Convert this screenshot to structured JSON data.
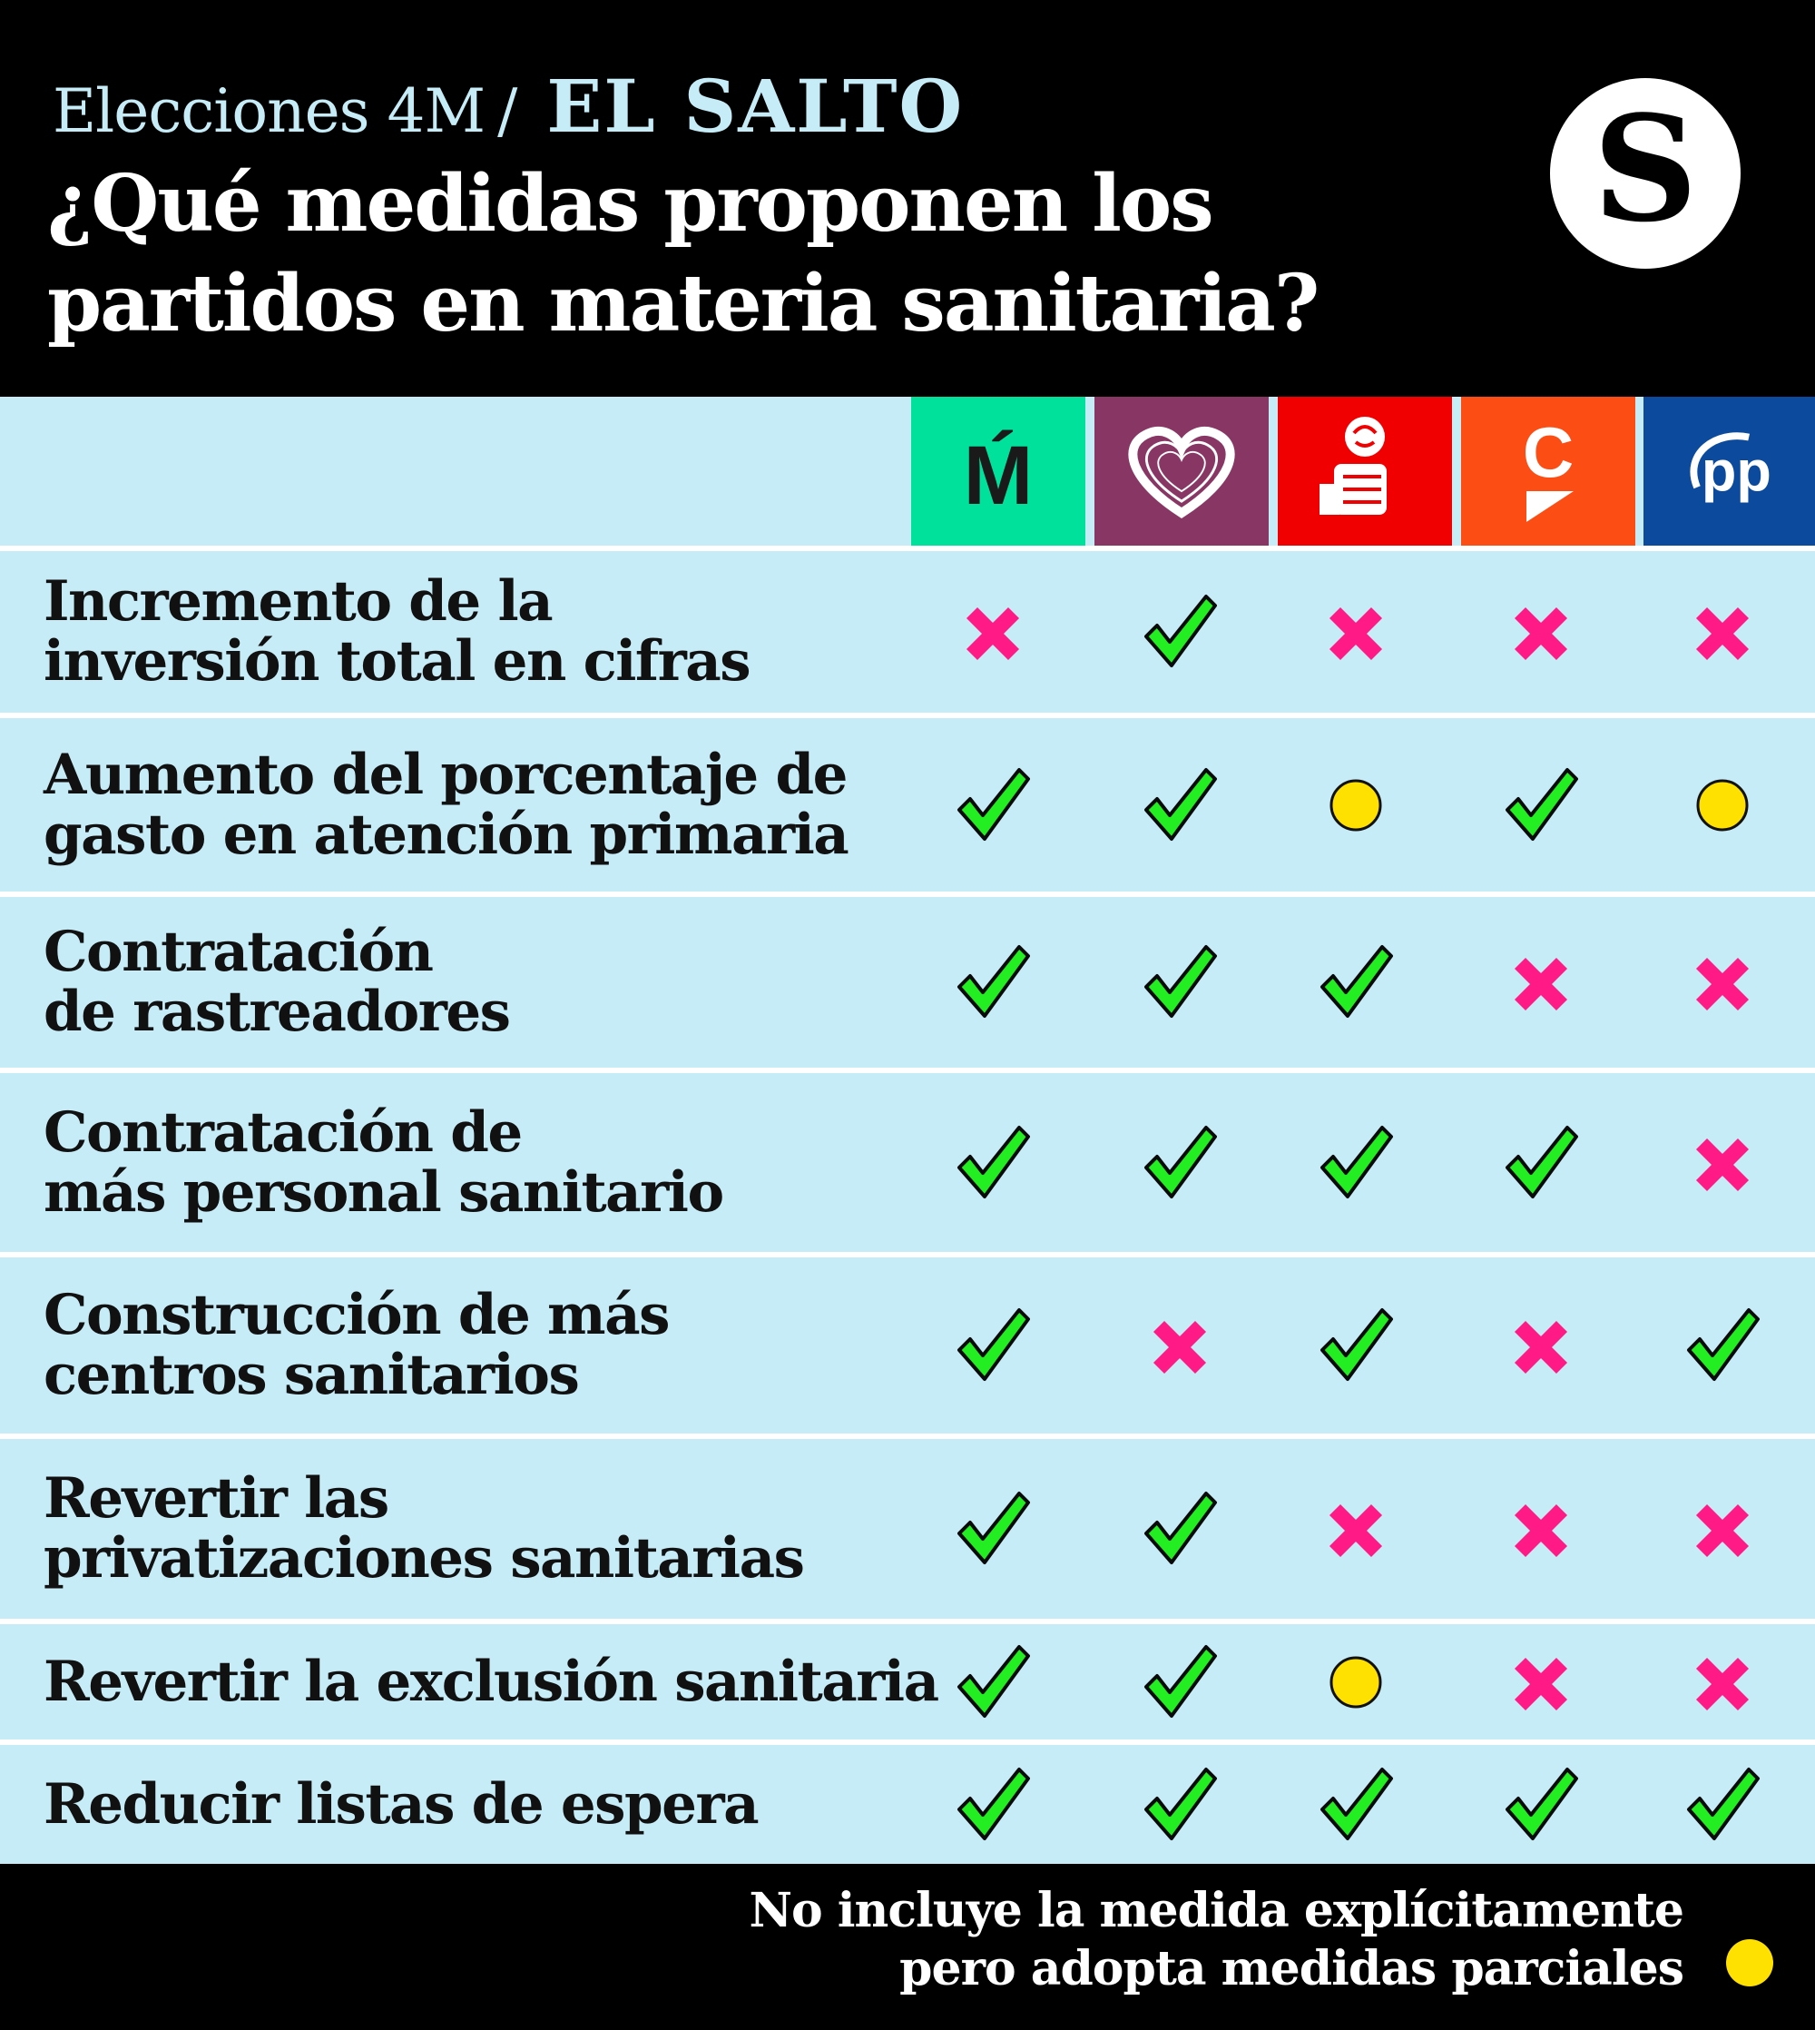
{
  "header": {
    "kicker": "Elecciones 4M",
    "separator": "/",
    "brand": "EL SALTO",
    "title_line_1": "¿Qué medidas proponen los",
    "title_line_2": "partidos en materia sanitaria?",
    "logo_letter": "S"
  },
  "colors": {
    "background": "#000000",
    "row_bg": "#c6ecf7",
    "kicker": "#c6ecf7",
    "yes": "#22ee22",
    "no": "#ff1a86",
    "partial": "#ffe100",
    "mas_madrid": "#00e29c",
    "podemos": "#883764",
    "psoe": "#f00000",
    "ciudadanos": "#fc4e14",
    "pp": "#0b4a9c"
  },
  "parties": [
    {
      "id": "mas-madrid",
      "logo_text": "Ḿ",
      "icon": "mas-madrid-logo",
      "color": "#00e29c"
    },
    {
      "id": "podemos",
      "icon": "heart-logo",
      "color": "#883764"
    },
    {
      "id": "psoe",
      "icon": "rose-fist-logo",
      "color": "#f00000"
    },
    {
      "id": "ciudadanos",
      "logo_text": "C",
      "icon": "ciudadanos-logo",
      "color": "#fc4e14"
    },
    {
      "id": "pp",
      "logo_text": "pp",
      "icon": "pp-logo",
      "color": "#0b4a9c"
    }
  ],
  "chart_data": {
    "type": "table",
    "rows": [
      {
        "label": [
          "Incremento de la",
          "inversión total en cifras"
        ],
        "values": [
          "no",
          "yes",
          "no",
          "no",
          "no"
        ]
      },
      {
        "label": [
          "Aumento del porcentaje de",
          "gasto en atención primaria"
        ],
        "values": [
          "yes",
          "yes",
          "partial",
          "yes",
          "partial"
        ]
      },
      {
        "label": [
          "Contratación",
          "de rastreadores"
        ],
        "values": [
          "yes",
          "yes",
          "yes",
          "no",
          "no"
        ]
      },
      {
        "label": [
          "Contratación de",
          "más personal sanitario"
        ],
        "values": [
          "yes",
          "yes",
          "yes",
          "yes",
          "no"
        ]
      },
      {
        "label": [
          "Construcción de más",
          "centros sanitarios"
        ],
        "values": [
          "yes",
          "no",
          "yes",
          "no",
          "yes"
        ]
      },
      {
        "label": [
          "Revertir las",
          "privatizaciones sanitarias"
        ],
        "values": [
          "yes",
          "yes",
          "no",
          "no",
          "no"
        ]
      },
      {
        "label": [
          "Revertir la exclusión sanitaria"
        ],
        "values": [
          "yes",
          "yes",
          "partial",
          "no",
          "no"
        ]
      },
      {
        "label": [
          "Reducir listas de espera"
        ],
        "values": [
          "yes",
          "yes",
          "yes",
          "yes",
          "yes"
        ]
      }
    ]
  },
  "legend": {
    "partial_line_1": "No incluye la medida explícitamente",
    "partial_line_2": "pero adopta medidas parciales"
  }
}
